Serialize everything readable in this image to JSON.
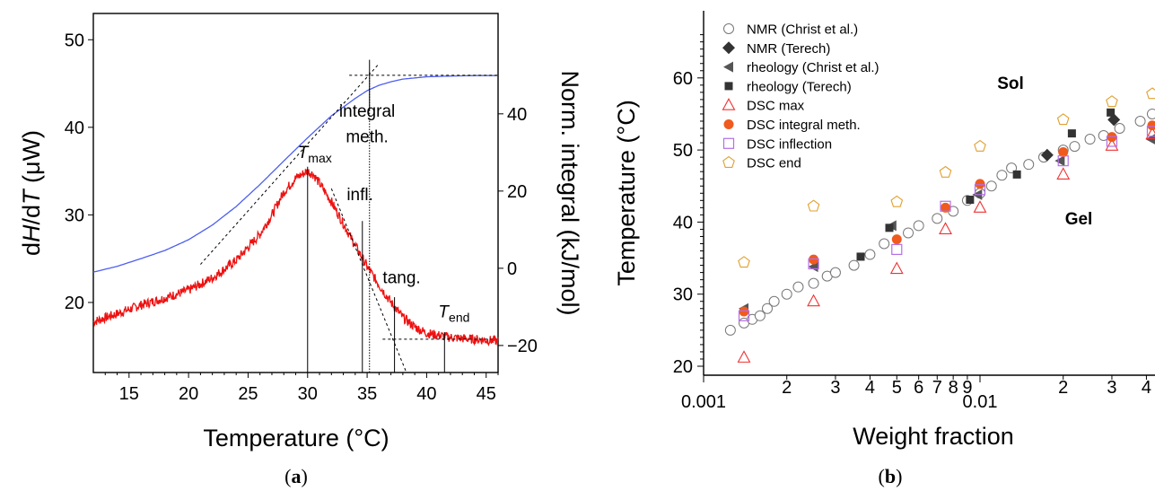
{
  "chart_data": [
    {
      "type": "line",
      "panel_label": "a",
      "xlabel": "Temperature (°C)",
      "ylabel_left": [
        "d",
        "H",
        "/d",
        "T",
        " (μW)"
      ],
      "ylabel_right": "Norm. integral (kJ/mol)",
      "xlim": [
        12,
        46
      ],
      "ylim_left": [
        12,
        53
      ],
      "ylim_right": [
        -27,
        66
      ],
      "x_ticks": [
        15,
        20,
        25,
        30,
        35,
        40,
        45
      ],
      "y_left_ticks": [
        20,
        30,
        40,
        50
      ],
      "y_right_ticks": [
        -20,
        0,
        20,
        40
      ],
      "colors": {
        "dHdT": "#ee1111",
        "integral": "#4d5ef0"
      },
      "series": [
        {
          "axis": "left",
          "x": [
            12,
            14,
            16,
            18,
            20,
            22,
            24,
            26,
            27,
            28,
            29,
            30,
            30.5,
            31,
            32,
            33,
            34,
            35,
            36,
            37,
            38,
            39,
            40,
            42,
            44,
            46
          ],
          "y": [
            17.8,
            18.7,
            19.7,
            20.5,
            21.4,
            22.8,
            24.8,
            27.8,
            30.0,
            32.6,
            34.2,
            35.0,
            34.6,
            33.6,
            31.5,
            29.0,
            26.5,
            24.1,
            22.0,
            20.0,
            18.3,
            17.2,
            16.5,
            16.0,
            15.8,
            15.6
          ]
        },
        {
          "axis": "right",
          "x": [
            12,
            14,
            16,
            18,
            20,
            22,
            24,
            26,
            28,
            30,
            32,
            34,
            35,
            36,
            37,
            38,
            40,
            42,
            44,
            46
          ],
          "y": [
            -1.0,
            0.5,
            2.5,
            4.6,
            7.4,
            11.2,
            16.0,
            21.7,
            27.8,
            33.8,
            39.5,
            44.0,
            46.0,
            47.4,
            48.3,
            49.0,
            49.6,
            49.8,
            49.9,
            49.9
          ]
        }
      ],
      "annotations": [
        {
          "text": "T",
          "sub": "max",
          "x": 30.0
        },
        {
          "text": "integral",
          "text2": "meth.",
          "x": 35.2
        },
        {
          "text": "infl.",
          "x": 34.6
        },
        {
          "text": "tang.",
          "x": 37.3
        },
        {
          "text": "T",
          "sub": "end",
          "x": 41.5
        }
      ]
    },
    {
      "type": "scatter",
      "panel_label": "b",
      "xlabel": "Weight fraction",
      "ylabel": "Temperature (°C)",
      "xscale": "log",
      "xlim": [
        0.001,
        0.043
      ],
      "ylim": [
        18.5,
        68
      ],
      "x_major_ticks": [
        0.001,
        0.01
      ],
      "x_major_labels": [
        "0.001",
        "0.01"
      ],
      "x_minor_ticks": [
        0.002,
        0.003,
        0.004,
        0.005,
        0.006,
        0.007,
        0.008,
        0.009,
        0.02,
        0.03,
        0.04
      ],
      "x_minor_labels": [
        "2",
        "3",
        "4",
        "5",
        "6",
        "7",
        "8",
        "9",
        "2",
        "3",
        "4"
      ],
      "y_ticks": [
        20,
        30,
        40,
        50,
        60
      ],
      "regions": [
        "Sol",
        "Gel"
      ],
      "series": [
        {
          "name": "NMR (Christ et al.)",
          "marker": "circle-open",
          "color": "#777777",
          "x": [
            0.00125,
            0.0014,
            0.0015,
            0.0016,
            0.0017,
            0.0018,
            0.002,
            0.0022,
            0.0025,
            0.0028,
            0.003,
            0.0035,
            0.004,
            0.0045,
            0.0055,
            0.006,
            0.007,
            0.008,
            0.009,
            0.01,
            0.011,
            0.012,
            0.013,
            0.015,
            0.017,
            0.02,
            0.022,
            0.025,
            0.028,
            0.032,
            0.038,
            0.042
          ],
          "y": [
            25,
            26,
            26.5,
            27,
            28,
            29,
            30,
            31,
            31.5,
            32.5,
            33,
            34,
            35.5,
            37,
            38.5,
            39.5,
            40.5,
            41.5,
            43,
            44,
            45,
            46.5,
            47.5,
            48,
            49,
            50,
            50.5,
            51.5,
            52,
            53,
            54,
            55
          ]
        },
        {
          "name": "NMR (Terech)",
          "marker": "diamond-filled",
          "color": "#333333",
          "x": [
            0.0175,
            0.0305
          ],
          "y": [
            49.3,
            54.2
          ]
        },
        {
          "name": "rheology (Christ et al.)",
          "marker": "triangle-left-filled",
          "color": "#555555",
          "x": [
            0.0014,
            0.0025,
            0.0048,
            0.0098,
            0.0195,
            0.0415
          ],
          "y": [
            28,
            33.8,
            39.5,
            43.8,
            48.5,
            51.5
          ]
        },
        {
          "name": "rheology (Terech)",
          "marker": "square-filled",
          "color": "#333333",
          "x": [
            0.0037,
            0.0047,
            0.0092,
            0.0136,
            0.0215,
            0.0297
          ],
          "y": [
            35.2,
            39.2,
            43.1,
            46.6,
            52.3,
            55.2
          ]
        },
        {
          "name": "DSC max",
          "marker": "triangle-up-open",
          "color": "#ee3333",
          "x": [
            0.0014,
            0.0025,
            0.005,
            0.0075,
            0.01,
            0.02,
            0.03,
            0.042
          ],
          "y": [
            21.2,
            29,
            33.5,
            39,
            42,
            46.6,
            50.6,
            52.2
          ]
        },
        {
          "name": "DSC integral meth.",
          "marker": "circle-filled",
          "color": "#f05a1e",
          "x": [
            0.0014,
            0.0025,
            0.005,
            0.0075,
            0.01,
            0.02,
            0.03,
            0.042
          ],
          "y": [
            27.6,
            34.8,
            37.6,
            42,
            45.3,
            49.7,
            51.8,
            53.4
          ]
        },
        {
          "name": "DSC inflection",
          "marker": "square-open",
          "color": "#b46ee6",
          "x": [
            0.0014,
            0.0025,
            0.005,
            0.0075,
            0.01,
            0.02,
            0.03,
            0.042
          ],
          "y": [
            27,
            34.2,
            36.2,
            42.2,
            44.5,
            48.5,
            51.2,
            52.6
          ]
        },
        {
          "name": "DSC end",
          "marker": "pentagon-open",
          "color": "#e0a030",
          "x": [
            0.0014,
            0.0025,
            0.005,
            0.0075,
            0.01,
            0.02,
            0.03,
            0.042
          ],
          "y": [
            34.4,
            42.2,
            42.8,
            46.9,
            50.5,
            54.2,
            56.7,
            57.8
          ]
        }
      ]
    }
  ]
}
